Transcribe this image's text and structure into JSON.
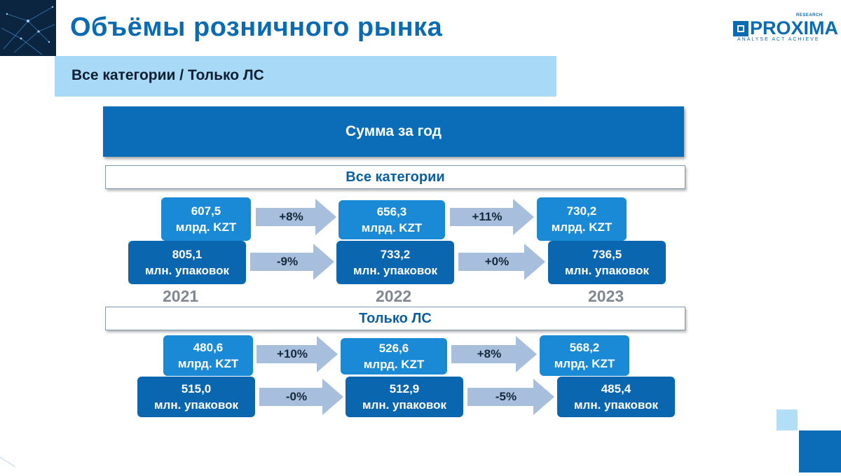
{
  "title": "Объёмы розничного рынка",
  "subtitle": "Все категории / Только ЛС",
  "header": "Сумма за год",
  "logo": {
    "word": "PROXIMA",
    "research": "RESEARCH",
    "tagline": "ANALYSE  ACT  ACHIEVE"
  },
  "sections": [
    {
      "title": "Все категории",
      "kzt": {
        "values": [
          {
            "value": "607,5",
            "unit": "млрд. KZT"
          },
          {
            "value": "656,3",
            "unit": "млрд. KZT"
          },
          {
            "value": "730,2",
            "unit": "млрд. KZT"
          }
        ],
        "changes": [
          "+8%",
          "+11%"
        ]
      },
      "packs": {
        "values": [
          {
            "value": "805,1",
            "unit": "млн. упаковок"
          },
          {
            "value": "733,2",
            "unit": "млн. упаковок"
          },
          {
            "value": "736,5",
            "unit": "млн. упаковок"
          }
        ],
        "changes": [
          "-9%",
          "+0%"
        ]
      }
    },
    {
      "title": "Только ЛС",
      "kzt": {
        "values": [
          {
            "value": "480,6",
            "unit": "млрд. KZT"
          },
          {
            "value": "526,6",
            "unit": "млрд. KZT"
          },
          {
            "value": "568,2",
            "unit": "млрд. KZT"
          }
        ],
        "changes": [
          "+10%",
          "+8%"
        ]
      },
      "packs": {
        "values": [
          {
            "value": "515,0",
            "unit": "млн. упаковок"
          },
          {
            "value": "512,9",
            "unit": "млн. упаковок"
          },
          {
            "value": "485,4",
            "unit": "млн. упаковок"
          }
        ],
        "changes": [
          "-0%",
          "-5%"
        ]
      }
    }
  ],
  "years": [
    "2021",
    "2022",
    "2023"
  ],
  "colors": {
    "title": "#0a6bb3",
    "kzt_box": "#1a8ad6",
    "pack_box": "#0b66b0",
    "arrow": "#a7bfdc",
    "subtitle_band": "#a8daf7"
  }
}
